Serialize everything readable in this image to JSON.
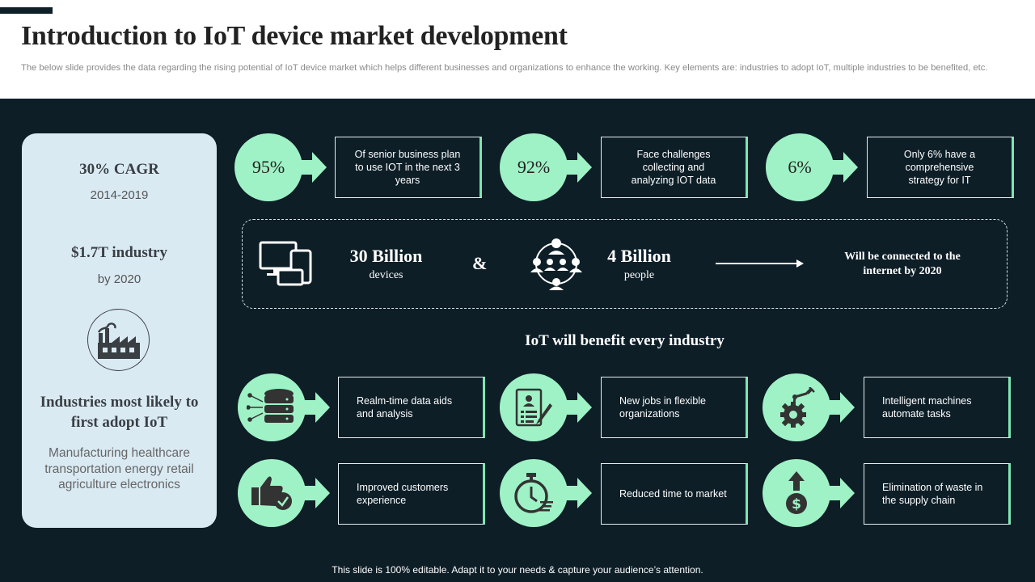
{
  "header": {
    "title": "Introduction to IoT device market development",
    "subtitle": "The below slide provides the data regarding the rising potential of IoT device market which helps different businesses and organizations to enhance the working. Key elements are: industries to adopt IoT, multiple industries to be benefited, etc."
  },
  "left_card": {
    "cagr": "30% CAGR",
    "years": "2014-2019",
    "industry_value": "$1.7T industry",
    "by_year": "by 2020",
    "icon": "factory-icon",
    "heading": "Industries most likely to first adopt IoT",
    "industries": "Manufacturing healthcare transportation energy retail agriculture electronics"
  },
  "stats": [
    {
      "value": "95%",
      "text": "Of senior business plan to use IOT in the next 3 years"
    },
    {
      "value": "92%",
      "text": "Face challenges collecting and analyzing IOT data"
    },
    {
      "value": "6%",
      "text": "Only 6% have a comprehensive strategy for IT"
    }
  ],
  "connected": {
    "devices_value": "30 Billion",
    "devices_label": "devices",
    "amp": "&",
    "people_value": "4 Billion",
    "people_label": "people",
    "conclusion": "Will be connected to the internet by 2020",
    "devices_icon": "devices-icon",
    "people_icon": "people-network-icon"
  },
  "benefits_title": "IoT will benefit every industry",
  "benefits": [
    {
      "icon": "database-icon",
      "text": "Realm-time data aids and analysis"
    },
    {
      "icon": "resume-icon",
      "text": "New jobs in flexible organizations"
    },
    {
      "icon": "robot-gear-icon",
      "text": "Intelligent machines automate tasks"
    },
    {
      "icon": "thumbs-up-icon",
      "text": "Improved customers experience"
    },
    {
      "icon": "stopwatch-icon",
      "text": "Reduced time to market"
    },
    {
      "icon": "dollar-arrow-icon",
      "text": "Elimination of waste in the supply chain"
    }
  ],
  "footer": "This slide is 100% editable. Adapt it to your needs & capture your audience’s attention.",
  "colors": {
    "accent": "#9ff2c6",
    "panel": "#0d1e27",
    "card": "#daeaf3"
  }
}
